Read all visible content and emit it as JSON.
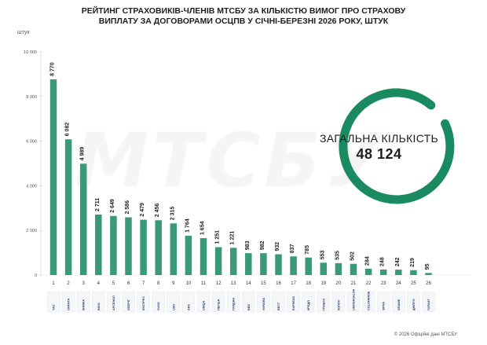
{
  "title": {
    "line1": "РЕЙТИНГ СТРАХОВИКІВ-ЧЛЕНІВ МТСБУ ЗА КІЛЬКІСТЮ ВИМОГ ПРО СТРАХОВУ",
    "line2": "ВИПЛАТУ ЗА ДОГОВОРАМИ ОСЦПВ У СІЧНІ-БЕРЕЗНІ 2026 РОКУ, ШТУК"
  },
  "unit_label": "штук",
  "watermark": "МТСБУ",
  "total": {
    "label": "ЗАГАЛЬНА КІЛЬКІСТЬ",
    "value": "48 124"
  },
  "footer": "© 2026 Офіційні дані МТСБУ",
  "colors": {
    "bar": "#3a9a78",
    "ring": "#1a8a60",
    "text": "#1d1d1d"
  },
  "chart_data": {
    "type": "bar",
    "categories": [
      "1",
      "2",
      "3",
      "4",
      "5",
      "6",
      "7",
      "8",
      "9",
      "10",
      "11",
      "12",
      "13",
      "14",
      "15",
      "16",
      "17",
      "18",
      "19",
      "20",
      "21",
      "22",
      "23",
      "24",
      "25",
      "26"
    ],
    "values": [
      8770,
      6082,
      4989,
      2711,
      2649,
      2586,
      2479,
      2456,
      2315,
      1764,
      1654,
      1251,
      1221,
      983,
      982,
      932,
      837,
      785,
      553,
      535,
      502,
      284,
      248,
      242,
      219,
      95
    ],
    "value_labels": [
      "8 770",
      "6 082",
      "4 989",
      "2 711",
      "2 649",
      "2 586",
      "2 479",
      "2 456",
      "2 315",
      "1 764",
      "1 654",
      "1 251",
      "1 221",
      "983",
      "982",
      "932",
      "837",
      "785",
      "553",
      "535",
      "502",
      "284",
      "248",
      "242",
      "219",
      "95"
    ],
    "y_ticks": [
      0,
      2000,
      4000,
      6000,
      8000,
      10000
    ],
    "y_tick_labels": [
      "0",
      "2 000",
      "4 000",
      "6 000",
      "8 000",
      "10 000"
    ],
    "ylim": [
      0,
      10000
    ],
    "ylabel": "штук",
    "grid": false,
    "logos": [
      "ТАС",
      "ОРАНТА",
      "КНЯЖА",
      "INGO",
      "АРСЕНАЛ",
      "ОБЕРІГ",
      "ЕКСПРЕС",
      "VUSO",
      "USG",
      "ARX",
      "UNIQA",
      "ПЕРША",
      "ГАРДІАН",
      "BBS",
      "УКРАЇНА",
      "ВЕСТ",
      "EXPRESS",
      "КРЕДО",
      "ГЛОБУС",
      "КОЛОС",
      "UNIVERSALNA",
      "COLONNADE",
      "ЗІРКА",
      "GRAWE",
      "ДНІПРО",
      "ГАРАНТ"
    ]
  }
}
